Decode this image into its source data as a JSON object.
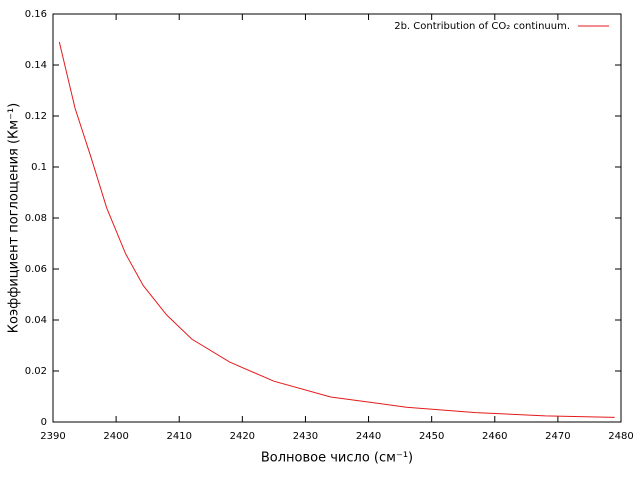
{
  "chart_data": {
    "type": "line",
    "x_label": "Волновое число (см⁻¹)",
    "y_label": "Коэффициент поглощения (Км⁻¹)",
    "xlim": [
      2390,
      2480
    ],
    "xticks": [
      2390,
      2400,
      2410,
      2420,
      2430,
      2440,
      2450,
      2460,
      2470,
      2480
    ],
    "ylim": [
      0,
      0.16
    ],
    "yticks": [
      0,
      0.02,
      0.04,
      0.06,
      0.08,
      0.1,
      0.12,
      0.14,
      0.16
    ],
    "grid": false,
    "legend": "top-right",
    "series": [
      {
        "name": "2b. Contribution of CO₂ continuum.",
        "color": "#e41a1c",
        "x": [
          2391,
          2393.5,
          2396,
          2398.5,
          2401.5,
          2404.3,
          2408,
          2412,
          2418,
          2425,
          2434,
          2446,
          2457,
          2468,
          2479
        ],
        "values": [
          0.149,
          0.123,
          0.104,
          0.084,
          0.066,
          0.0535,
          0.042,
          0.0325,
          0.0235,
          0.016,
          0.0098,
          0.0058,
          0.0037,
          0.0024,
          0.0018
        ]
      }
    ]
  }
}
